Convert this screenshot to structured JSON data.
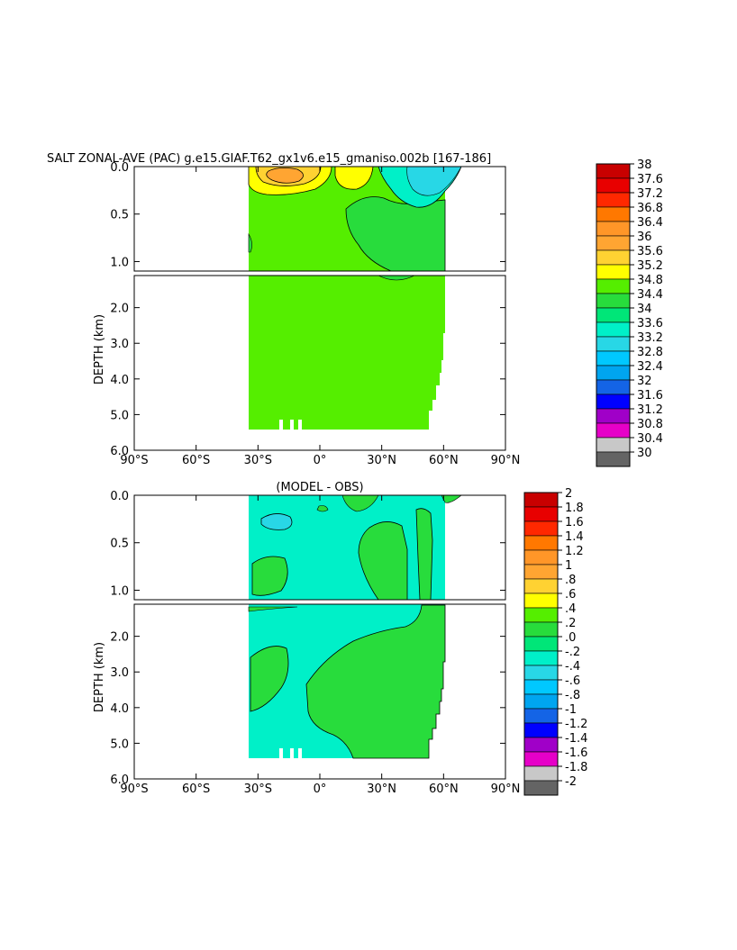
{
  "figure": {
    "title": "SALT ZONAL-AVE (PAC) g.e15.GIAF.T62_gx1v6.e15_gmaniso.002b  [167-186]",
    "diff_title": "(MODEL - OBS)"
  },
  "chart_data": [
    {
      "type": "heatmap",
      "variable": "SALT zonal average",
      "ylabel": "DEPTH (km)",
      "x_ticks": [
        "90°S",
        "60°S",
        "30°S",
        "0°",
        "30°N",
        "60°N",
        "90°N"
      ],
      "y_ticks_upper": [
        "0.0",
        "0.5",
        "1.0"
      ],
      "y_ticks_lower": [
        "2.0",
        "3.0",
        "4.0",
        "5.0",
        "6.0"
      ],
      "xlim": [
        -90,
        90
      ],
      "ylim_upper": [
        0,
        1.1
      ],
      "ylim_lower": [
        1.1,
        6.0
      ],
      "data_extent_lat": [
        -34,
        64
      ],
      "colorbar_levels": [
        "38",
        "37.6",
        "37.2",
        "36.8",
        "36.4",
        "36",
        "35.6",
        "35.2",
        "34.8",
        "34.4",
        "34",
        "33.6",
        "33.2",
        "32.8",
        "32.4",
        "32",
        "31.6",
        "31.2",
        "30.8",
        "30.4",
        "30"
      ],
      "colorbar_colors": [
        "#c80000",
        "#e80000",
        "#ff2800",
        "#ff7800",
        "#ff9628",
        "#ffa532",
        "#ffd232",
        "#ffff00",
        "#55ee00",
        "#28dc3c",
        "#00e678",
        "#00f0c8",
        "#28d7e6",
        "#00c8ff",
        "#00a5f0",
        "#1464e6",
        "#0000ff",
        "#a000c8",
        "#e600c8",
        "#c8c8c8",
        "#646464"
      ]
    },
    {
      "type": "heatmap",
      "variable": "SALT difference (MODEL - OBS)",
      "ylabel": "DEPTH (km)",
      "x_ticks": [
        "90°S",
        "60°S",
        "30°S",
        "0°",
        "30°N",
        "60°N",
        "90°N"
      ],
      "y_ticks_upper": [
        "0.0",
        "0.5",
        "1.0"
      ],
      "y_ticks_lower": [
        "2.0",
        "3.0",
        "4.0",
        "5.0",
        "6.0"
      ],
      "xlim": [
        -90,
        90
      ],
      "ylim_upper": [
        0,
        1.1
      ],
      "ylim_lower": [
        1.1,
        6.0
      ],
      "data_extent_lat": [
        -34,
        64
      ],
      "colorbar_levels": [
        "2",
        "1.8",
        "1.6",
        "1.4",
        "1.2",
        "1",
        ".8",
        ".6",
        ".4",
        ".2",
        ".0",
        "-.2",
        "-.4",
        "-.6",
        "-.8",
        "-1",
        "-1.2",
        "-1.4",
        "-1.6",
        "-1.8",
        "-2"
      ],
      "colorbar_colors": [
        "#c80000",
        "#e80000",
        "#ff2800",
        "#ff7800",
        "#ff9628",
        "#ffa532",
        "#ffd232",
        "#ffff00",
        "#55ee00",
        "#28dc3c",
        "#00e678",
        "#00f0c8",
        "#28d7e6",
        "#00c8ff",
        "#00a5f0",
        "#1464e6",
        "#0000ff",
        "#a000c8",
        "#e600c8",
        "#c8c8c8",
        "#646464"
      ]
    }
  ]
}
